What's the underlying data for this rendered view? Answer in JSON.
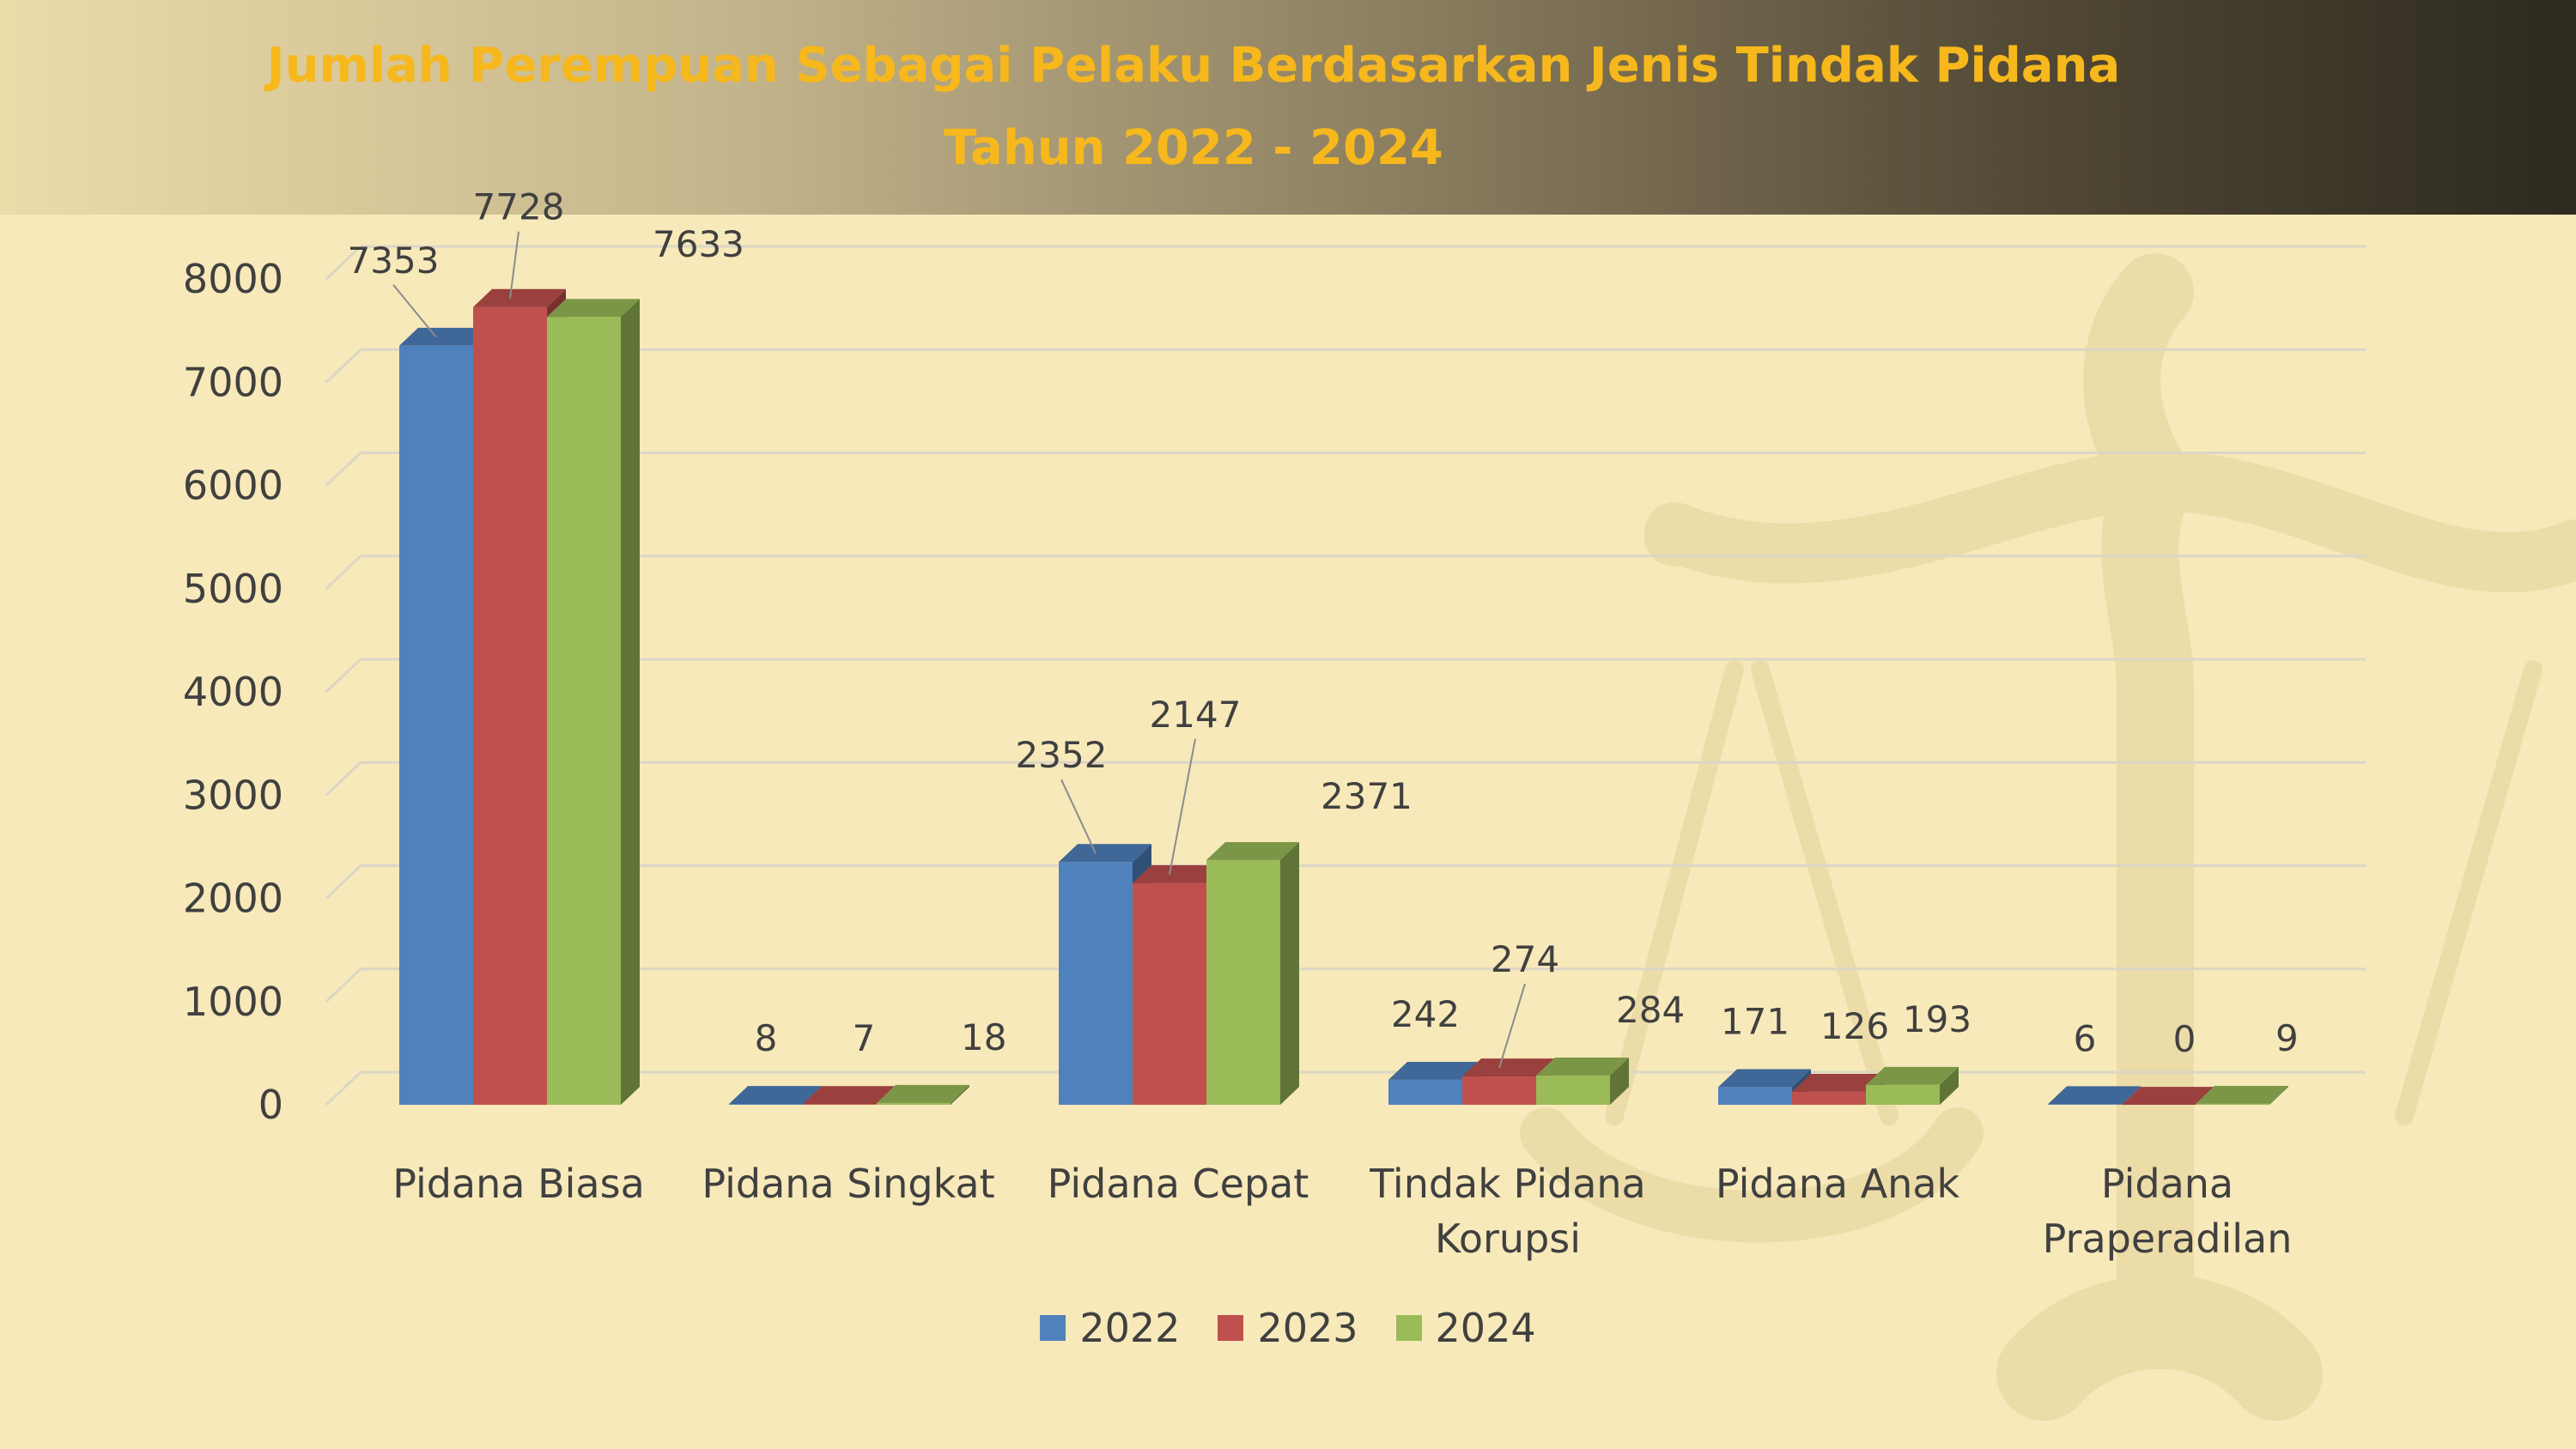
{
  "header": {
    "title_line1": "Jumlah Perempuan Sebagai Pelaku Berdasarkan Jenis Tindak Pidana",
    "title_line2": "Tahun 2022 - 2024"
  },
  "colors": {
    "background": "#f7e9b9",
    "title": "#f6b81c",
    "text": "#404040",
    "grid": "#dcd6c6"
  },
  "chart_data": {
    "type": "bar",
    "style": "3d-clustered-column",
    "title": "Jumlah Perempuan Sebagai Pelaku Berdasarkan Jenis Tindak Pidana Tahun 2022 - 2024",
    "categories": [
      [
        "Pidana Biasa"
      ],
      [
        "Pidana Singkat"
      ],
      [
        "Pidana Cepat"
      ],
      [
        "Tindak Pidana",
        "Korupsi"
      ],
      [
        "Pidana Anak"
      ],
      [
        "Pidana",
        "Praperadilan"
      ]
    ],
    "series": [
      {
        "name": "2022",
        "color": "#4f81bd",
        "values": [
          7353,
          8,
          2352,
          242,
          171,
          6
        ]
      },
      {
        "name": "2023",
        "color": "#c0504d",
        "values": [
          7728,
          7,
          2147,
          274,
          126,
          0
        ]
      },
      {
        "name": "2024",
        "color": "#9bbb59",
        "values": [
          7633,
          18,
          2371,
          284,
          193,
          9
        ]
      }
    ],
    "ylim": [
      0,
      8000
    ],
    "yticks": [
      0,
      1000,
      2000,
      3000,
      4000,
      5000,
      6000,
      7000,
      8000
    ],
    "grid": true,
    "legend_position": "bottom"
  }
}
